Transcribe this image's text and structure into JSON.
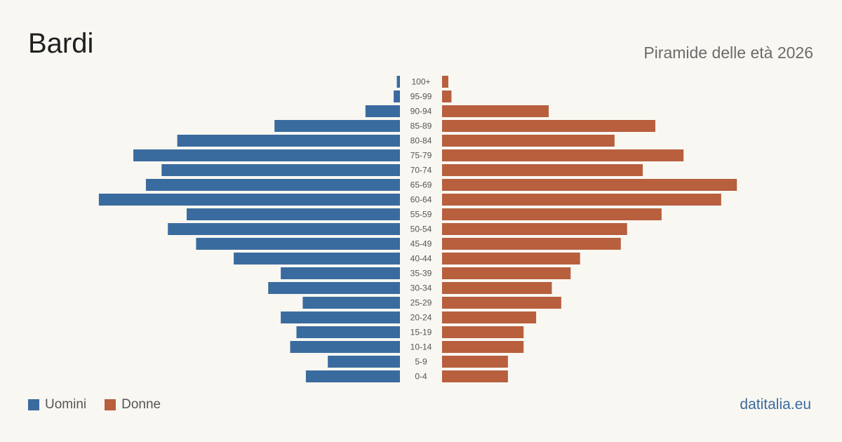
{
  "title": "Bardi",
  "subtitle": "Piramide delle età 2026",
  "brand": "datitalia.eu",
  "colors": {
    "men": "#3a6b9e",
    "women": "#b85f3e",
    "age_label": "#555555"
  },
  "legend": {
    "men_label": "Uomini",
    "women_label": "Donne"
  },
  "chart_data": {
    "type": "bar",
    "orientation": "horizontal-pyramid",
    "categories": [
      "100+",
      "95-99",
      "90-94",
      "85-89",
      "80-84",
      "75-79",
      "70-74",
      "65-69",
      "60-64",
      "55-59",
      "50-54",
      "45-49",
      "40-44",
      "35-39",
      "30-34",
      "25-29",
      "20-24",
      "15-19",
      "10-14",
      "5-9",
      "0-4"
    ],
    "series": [
      {
        "name": "Uomini",
        "values": [
          1,
          2,
          11,
          40,
          71,
          85,
          76,
          81,
          96,
          68,
          74,
          65,
          53,
          38,
          42,
          31,
          38,
          33,
          35,
          23,
          30
        ]
      },
      {
        "name": "Donne",
        "values": [
          2,
          3,
          34,
          68,
          55,
          77,
          64,
          94,
          89,
          70,
          59,
          57,
          44,
          41,
          35,
          38,
          30,
          26,
          26,
          21,
          21
        ]
      }
    ]
  }
}
